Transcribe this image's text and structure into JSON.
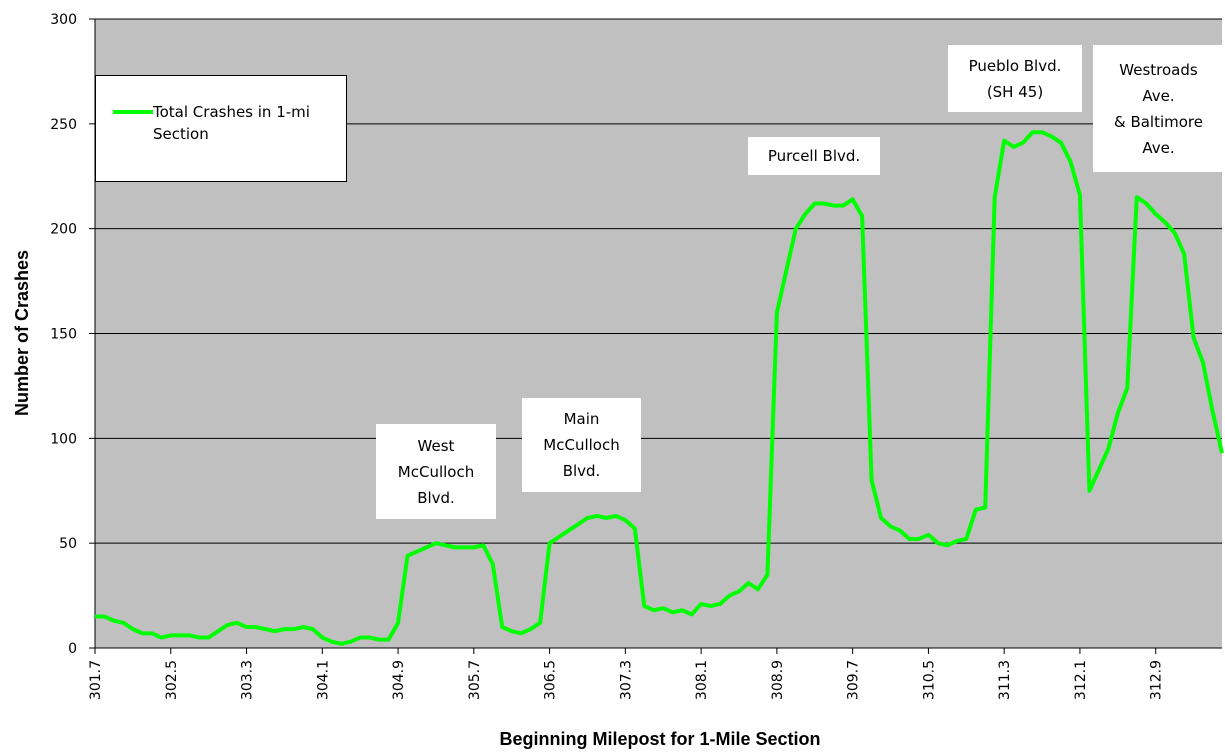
{
  "chart_data": {
    "type": "line",
    "xlabel": "Beginning Milepost for 1-Mile Section",
    "ylabel": "Number of Crashes",
    "x": [
      301.7,
      301.8,
      301.9,
      302.0,
      302.1,
      302.2,
      302.3,
      302.4,
      302.5,
      302.6,
      302.7,
      302.8,
      302.9,
      303.0,
      303.1,
      303.2,
      303.3,
      303.4,
      303.5,
      303.6,
      303.7,
      303.8,
      303.9,
      304.0,
      304.1,
      304.2,
      304.3,
      304.4,
      304.5,
      304.6,
      304.7,
      304.8,
      304.9,
      305.0,
      305.1,
      305.2,
      305.3,
      305.4,
      305.5,
      305.6,
      305.7,
      305.8,
      305.9,
      306.0,
      306.1,
      306.2,
      306.3,
      306.4,
      306.5,
      306.6,
      306.7,
      306.8,
      306.9,
      307.0,
      307.1,
      307.2,
      307.3,
      307.4,
      307.5,
      307.6,
      307.7,
      307.8,
      307.9,
      308.0,
      308.1,
      308.2,
      308.3,
      308.4,
      308.5,
      308.6,
      308.7,
      308.8,
      308.9,
      309.0,
      309.1,
      309.2,
      309.3,
      309.4,
      309.5,
      309.6,
      309.7,
      309.8,
      309.9,
      310.0,
      310.1,
      310.2,
      310.3,
      310.4,
      310.5,
      310.6,
      310.7,
      310.8,
      310.9,
      311.0,
      311.1,
      311.2,
      311.3,
      311.4,
      311.5,
      311.6,
      311.7,
      311.8,
      311.9,
      312.0,
      312.1,
      312.2,
      312.3,
      312.4,
      312.5,
      312.6,
      312.7,
      312.8,
      312.9,
      313.0,
      313.1,
      313.2,
      313.3,
      313.4,
      313.5,
      313.6
    ],
    "series": [
      {
        "name": "Total Crashes in 1-mi Section",
        "color": "#00ff00",
        "values": [
          15,
          15,
          13,
          12,
          9,
          7,
          7,
          5,
          6,
          6,
          6,
          5,
          5,
          8,
          11,
          12,
          10,
          10,
          9,
          8,
          9,
          9,
          10,
          9,
          5,
          3,
          2,
          3,
          5,
          5,
          4,
          4,
          12,
          44,
          46,
          48,
          50,
          49,
          48,
          48,
          48,
          49,
          40,
          10,
          8,
          7,
          9,
          12,
          50,
          53,
          56,
          59,
          62,
          63,
          62,
          63,
          61,
          57,
          20,
          18,
          19,
          17,
          18,
          16,
          21,
          20,
          21,
          25,
          27,
          31,
          28,
          35,
          160,
          180,
          200,
          207,
          212,
          212,
          211,
          211,
          214,
          206,
          80,
          62,
          58,
          56,
          52,
          52,
          54,
          50,
          49,
          51,
          52,
          66,
          67,
          215,
          242,
          239,
          241,
          246,
          246,
          244,
          241,
          232,
          216,
          75,
          85,
          95,
          112,
          124,
          215,
          212,
          207,
          203,
          198,
          188,
          148,
          136,
          113,
          93
        ]
      }
    ],
    "xlim": [
      301.7,
      313.6
    ],
    "xticks": [
      301.7,
      302.5,
      303.3,
      304.1,
      304.9,
      305.7,
      306.5,
      307.3,
      308.1,
      308.9,
      309.7,
      310.5,
      311.3,
      312.1,
      312.9
    ],
    "ylim": [
      0,
      300
    ],
    "yticks": [
      0,
      50,
      100,
      150,
      200,
      250,
      300
    ],
    "grid": true,
    "legend": "upper left",
    "annotations": [
      {
        "lines": [
          "West",
          "McCulloch",
          "Blvd."
        ]
      },
      {
        "lines": [
          "Main",
          "McCulloch",
          "Blvd."
        ]
      },
      {
        "lines": [
          "Purcell Blvd."
        ]
      },
      {
        "lines": [
          "Pueblo Blvd.",
          "(SH 45)"
        ]
      },
      {
        "lines": [
          "Westroads",
          "Ave.",
          "& Baltimore",
          "Ave."
        ]
      }
    ]
  }
}
